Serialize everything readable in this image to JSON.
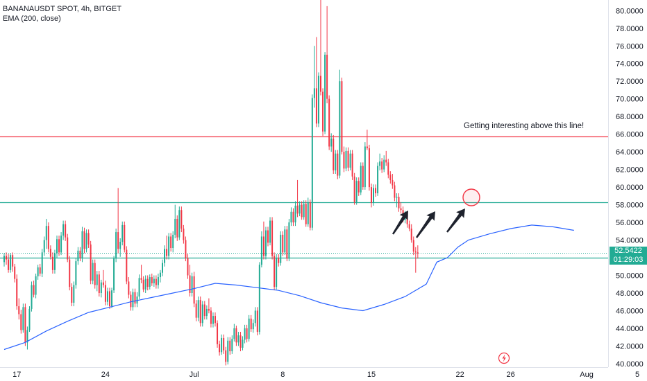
{
  "legend": {
    "symbol_line": "BANANAUSDT SPOT, 4h, BITGET",
    "indicator_line": "EMA (200, close)"
  },
  "price_badge": {
    "price": "52.5422",
    "countdown": "01:29:03"
  },
  "annotation": {
    "text": "Getting interesting above this line!"
  },
  "colors": {
    "up": "#22ab94",
    "down": "#f23645",
    "ema": "#2962ff",
    "resistance_line": "#f23645",
    "support_line": "#22ab94",
    "arrow": "#1e222d",
    "circle": "#f23645"
  },
  "chart_data": {
    "type": "candlestick",
    "title": "BANANAUSDT SPOT, 4h, BITGET",
    "ylim": [
      39.6,
      81.2
    ],
    "y_ticks": [
      "80.0000",
      "78.0000",
      "76.0000",
      "74.0000",
      "72.0000",
      "70.0000",
      "68.0000",
      "66.0000",
      "64.0000",
      "62.0000",
      "60.0000",
      "58.0000",
      "56.0000",
      "54.0000",
      "52.0000",
      "50.0000",
      "48.0000",
      "46.0000",
      "44.0000",
      "42.0000",
      "40.0000"
    ],
    "x_ticks": [
      {
        "label": "17",
        "index": 6
      },
      {
        "label": "24",
        "index": 48
      },
      {
        "label": "Jul",
        "index": 90
      },
      {
        "label": "8",
        "index": 132
      },
      {
        "label": "15",
        "index": 174
      },
      {
        "label": "22",
        "index": 216
      },
      {
        "label": "26",
        "index": 240
      },
      {
        "label": "Aug",
        "index": 276
      },
      {
        "label": "5",
        "index": 300
      }
    ],
    "horizontal_lines": [
      {
        "name": "resistance",
        "value": 65.75
      },
      {
        "name": "support-upper",
        "value": 58.3
      },
      {
        "name": "support-lower",
        "value": 52.0
      }
    ],
    "last_price": 52.5422,
    "ema": [
      [
        0,
        41.6
      ],
      [
        10,
        42.4
      ],
      [
        20,
        43.7
      ],
      [
        30,
        44.8
      ],
      [
        40,
        45.8
      ],
      [
        50,
        46.4
      ],
      [
        60,
        47.0
      ],
      [
        70,
        47.5
      ],
      [
        80,
        48.0
      ],
      [
        90,
        48.5
      ],
      [
        100,
        49.1
      ],
      [
        110,
        48.9
      ],
      [
        120,
        48.6
      ],
      [
        130,
        48.3
      ],
      [
        140,
        47.7
      ],
      [
        150,
        46.9
      ],
      [
        160,
        46.3
      ],
      [
        170,
        46.0
      ],
      [
        180,
        46.7
      ],
      [
        190,
        47.6
      ],
      [
        200,
        49.0
      ],
      [
        205,
        51.5
      ],
      [
        210,
        52.0
      ],
      [
        215,
        53.2
      ],
      [
        220,
        54.0
      ],
      [
        230,
        54.7
      ],
      [
        240,
        55.3
      ],
      [
        250,
        55.7
      ],
      [
        260,
        55.5
      ],
      [
        270,
        55.1
      ]
    ],
    "candles_ohlc": [
      [
        51.5,
        52.5,
        51.0,
        52.2
      ],
      [
        52.2,
        52.6,
        51.2,
        51.8
      ],
      [
        51.8,
        52.4,
        50.3,
        50.6
      ],
      [
        50.6,
        52.5,
        50.3,
        52.3
      ],
      [
        52.3,
        52.6,
        50.4,
        51.0
      ],
      [
        51.0,
        51.3,
        49.2,
        49.6
      ],
      [
        49.6,
        50.1,
        46.1,
        46.5
      ],
      [
        46.5,
        47.4,
        45.0,
        45.6
      ],
      [
        45.6,
        46.1,
        43.4,
        43.8
      ],
      [
        43.8,
        46.8,
        43.5,
        46.4
      ],
      [
        46.4,
        46.8,
        42.0,
        42.4
      ],
      [
        42.4,
        44.2,
        41.6,
        43.8
      ],
      [
        43.8,
        46.5,
        43.6,
        46.2
      ],
      [
        46.2,
        49.3,
        45.9,
        48.9
      ],
      [
        48.9,
        49.4,
        47.5,
        47.8
      ],
      [
        47.8,
        50.2,
        47.4,
        49.9
      ],
      [
        49.9,
        51.2,
        49.5,
        50.9
      ],
      [
        50.9,
        51.3,
        49.9,
        50.2
      ],
      [
        50.2,
        53.0,
        49.8,
        52.6
      ],
      [
        52.6,
        54.4,
        52.2,
        54.0
      ],
      [
        54.0,
        56.4,
        53.0,
        55.6
      ],
      [
        55.6,
        56.0,
        52.6,
        53.0
      ],
      [
        53.0,
        53.4,
        51.8,
        52.1
      ],
      [
        52.1,
        52.6,
        50.2,
        50.6
      ],
      [
        50.6,
        52.9,
        50.2,
        52.5
      ],
      [
        52.5,
        54.5,
        52.0,
        54.1
      ],
      [
        54.1,
        54.5,
        52.2,
        52.6
      ],
      [
        52.6,
        54.9,
        52.3,
        54.5
      ],
      [
        54.5,
        56.2,
        54.0,
        55.8
      ],
      [
        55.8,
        56.2,
        53.9,
        54.3
      ],
      [
        54.3,
        54.7,
        51.5,
        51.8
      ],
      [
        51.8,
        52.2,
        48.3,
        48.7
      ],
      [
        48.7,
        49.1,
        46.5,
        46.9
      ],
      [
        46.9,
        49.3,
        46.5,
        48.9
      ],
      [
        48.9,
        52.0,
        48.5,
        51.6
      ],
      [
        51.6,
        53.2,
        51.2,
        52.8
      ],
      [
        52.8,
        53.2,
        51.6,
        52.0
      ],
      [
        52.0,
        55.5,
        51.5,
        55.0
      ],
      [
        55.0,
        55.4,
        52.5,
        53.0
      ],
      [
        53.0,
        55.2,
        52.6,
        54.8
      ],
      [
        54.8,
        55.2,
        53.1,
        53.5
      ],
      [
        53.5,
        53.9,
        49.0,
        49.4
      ],
      [
        49.4,
        51.8,
        49.0,
        51.4
      ],
      [
        51.4,
        51.8,
        48.5,
        48.9
      ],
      [
        48.9,
        50.5,
        48.2,
        50.1
      ],
      [
        50.1,
        50.5,
        47.6,
        48.0
      ],
      [
        48.0,
        49.5,
        47.5,
        49.2
      ],
      [
        49.2,
        50.6,
        48.6,
        48.9
      ],
      [
        48.9,
        49.4,
        46.6,
        47.0
      ],
      [
        47.0,
        48.6,
        46.6,
        48.2
      ],
      [
        48.2,
        48.6,
        46.2,
        46.5
      ],
      [
        46.5,
        48.6,
        46.3,
        48.3
      ],
      [
        48.3,
        52.2,
        48.0,
        51.9
      ],
      [
        51.9,
        55.3,
        51.5,
        54.9
      ],
      [
        54.9,
        59.9,
        52.5,
        53.0
      ],
      [
        53.0,
        54.2,
        52.1,
        53.8
      ],
      [
        53.8,
        56.1,
        53.4,
        55.7
      ],
      [
        55.7,
        56.1,
        52.6,
        52.9
      ],
      [
        52.9,
        53.3,
        49.0,
        49.3
      ],
      [
        49.3,
        49.8,
        47.4,
        47.8
      ],
      [
        47.8,
        48.2,
        46.0,
        46.4
      ],
      [
        46.4,
        48.5,
        46.0,
        48.1
      ],
      [
        48.1,
        48.5,
        46.4,
        46.8
      ],
      [
        46.8,
        48.1,
        46.4,
        47.6
      ],
      [
        47.6,
        50.1,
        47.3,
        49.7
      ],
      [
        49.7,
        51.2,
        49.1,
        49.5
      ],
      [
        49.5,
        49.9,
        48.1,
        48.4
      ],
      [
        48.4,
        50.0,
        48.0,
        49.6
      ],
      [
        49.6,
        50.0,
        48.3,
        48.7
      ],
      [
        48.7,
        50.1,
        48.4,
        49.8
      ],
      [
        49.8,
        50.2,
        48.8,
        49.1
      ],
      [
        49.1,
        50.0,
        48.7,
        49.6
      ],
      [
        49.6,
        50.0,
        48.5,
        48.9
      ],
      [
        48.9,
        50.2,
        48.5,
        49.8
      ],
      [
        49.8,
        50.6,
        49.2,
        50.3
      ],
      [
        50.3,
        51.8,
        49.9,
        51.4
      ],
      [
        51.4,
        53.4,
        51.0,
        53.0
      ],
      [
        53.0,
        54.5,
        51.8,
        52.2
      ],
      [
        52.2,
        54.8,
        51.8,
        54.4
      ],
      [
        54.4,
        54.8,
        52.7,
        53.1
      ],
      [
        53.1,
        55.0,
        52.6,
        54.6
      ],
      [
        54.6,
        58.0,
        54.2,
        56.4
      ],
      [
        56.4,
        56.8,
        53.9,
        54.3
      ],
      [
        54.3,
        57.8,
        54.0,
        57.4
      ],
      [
        57.4,
        57.8,
        54.9,
        55.3
      ],
      [
        55.3,
        55.7,
        53.6,
        54.0
      ],
      [
        54.0,
        54.4,
        51.6,
        52.0
      ],
      [
        52.0,
        52.4,
        49.6,
        50.0
      ],
      [
        50.0,
        51.2,
        47.6,
        48.0
      ],
      [
        48.0,
        50.3,
        47.6,
        49.9
      ],
      [
        49.9,
        50.4,
        46.4,
        46.8
      ],
      [
        46.8,
        47.2,
        44.8,
        45.2
      ],
      [
        45.2,
        47.6,
        44.8,
        47.2
      ],
      [
        47.2,
        47.6,
        44.2,
        44.6
      ],
      [
        44.6,
        47.1,
        44.2,
        46.7
      ],
      [
        46.7,
        47.1,
        45.0,
        45.4
      ],
      [
        45.4,
        46.6,
        45.0,
        46.2
      ],
      [
        46.2,
        47.4,
        45.7,
        46.0
      ],
      [
        46.0,
        46.4,
        44.1,
        44.5
      ],
      [
        44.5,
        45.8,
        44.1,
        45.4
      ],
      [
        45.4,
        45.8,
        44.2,
        44.6
      ],
      [
        44.6,
        44.9,
        41.8,
        42.2
      ],
      [
        42.2,
        42.6,
        40.9,
        41.3
      ],
      [
        41.3,
        43.3,
        41.0,
        42.9
      ],
      [
        42.9,
        43.3,
        41.1,
        41.5
      ],
      [
        41.5,
        41.9,
        39.8,
        40.2
      ],
      [
        40.2,
        43.0,
        39.9,
        42.6
      ],
      [
        42.6,
        43.0,
        41.0,
        41.4
      ],
      [
        41.4,
        43.2,
        41.1,
        42.8
      ],
      [
        42.8,
        44.5,
        42.5,
        44.0
      ],
      [
        44.0,
        44.3,
        42.0,
        42.4
      ],
      [
        42.4,
        43.6,
        42.0,
        43.2
      ],
      [
        43.2,
        43.6,
        41.4,
        41.8
      ],
      [
        41.8,
        43.1,
        41.5,
        42.7
      ],
      [
        42.7,
        44.4,
        42.3,
        44.0
      ],
      [
        44.0,
        44.4,
        42.4,
        42.8
      ],
      [
        42.8,
        45.5,
        42.5,
        45.1
      ],
      [
        45.1,
        45.5,
        43.6,
        43.9
      ],
      [
        43.9,
        45.0,
        43.5,
        44.6
      ],
      [
        44.6,
        46.4,
        44.2,
        46.0
      ],
      [
        46.0,
        46.4,
        43.2,
        43.6
      ],
      [
        43.6,
        51.5,
        43.3,
        51.2
      ],
      [
        51.2,
        55.0,
        50.9,
        54.4
      ],
      [
        54.4,
        56.1,
        51.8,
        52.2
      ],
      [
        52.2,
        55.5,
        51.8,
        55.1
      ],
      [
        55.1,
        55.5,
        53.3,
        53.7
      ],
      [
        53.7,
        56.6,
        53.4,
        56.2
      ],
      [
        56.2,
        56.6,
        51.8,
        52.2
      ],
      [
        52.2,
        52.6,
        48.3,
        48.7
      ],
      [
        48.7,
        52.4,
        48.4,
        52.0
      ],
      [
        52.0,
        52.4,
        51.0,
        51.4
      ],
      [
        51.4,
        55.0,
        51.1,
        54.6
      ],
      [
        54.6,
        55.0,
        52.2,
        52.6
      ],
      [
        52.6,
        55.6,
        52.3,
        55.2
      ],
      [
        55.2,
        55.6,
        51.6,
        51.9
      ],
      [
        51.9,
        56.4,
        51.6,
        56.0
      ],
      [
        56.0,
        57.7,
        55.6,
        57.2
      ],
      [
        57.2,
        57.6,
        55.6,
        56.0
      ],
      [
        56.0,
        58.4,
        55.6,
        57.9
      ],
      [
        57.9,
        60.8,
        56.6,
        57.0
      ],
      [
        57.0,
        58.4,
        56.7,
        58.0
      ],
      [
        58.0,
        58.4,
        56.3,
        56.6
      ],
      [
        56.6,
        58.5,
        56.3,
        58.1
      ],
      [
        58.1,
        58.5,
        55.5,
        55.8
      ],
      [
        55.8,
        58.8,
        55.5,
        58.3
      ],
      [
        58.3,
        58.6,
        55.1,
        55.4
      ],
      [
        55.4,
        70.5,
        55.1,
        70.1
      ],
      [
        70.1,
        76.0,
        69.0,
        71.2
      ],
      [
        71.2,
        77.0,
        66.8,
        67.2
      ],
      [
        67.2,
        73.0,
        66.8,
        72.6
      ],
      [
        72.6,
        81.2,
        70.4,
        70.8
      ],
      [
        70.8,
        71.2,
        65.8,
        66.3
      ],
      [
        66.3,
        75.3,
        66.0,
        75.0
      ],
      [
        75.0,
        80.5,
        69.5,
        70.0
      ],
      [
        70.0,
        70.4,
        64.2,
        64.6
      ],
      [
        64.6,
        66.1,
        64.0,
        65.5
      ],
      [
        65.5,
        65.9,
        61.5,
        61.9
      ],
      [
        61.9,
        64.2,
        61.5,
        63.8
      ],
      [
        63.8,
        64.2,
        60.9,
        61.3
      ],
      [
        61.3,
        73.3,
        61.0,
        72.0
      ],
      [
        72.0,
        72.4,
        63.7,
        64.0
      ],
      [
        64.0,
        64.6,
        61.7,
        62.1
      ],
      [
        62.1,
        64.5,
        61.8,
        64.1
      ],
      [
        64.1,
        64.5,
        61.8,
        62.2
      ],
      [
        62.2,
        64.2,
        61.9,
        63.8
      ],
      [
        63.8,
        64.2,
        60.8,
        61.2
      ],
      [
        61.2,
        61.6,
        58.0,
        58.3
      ],
      [
        58.3,
        61.1,
        58.0,
        60.7
      ],
      [
        60.7,
        61.1,
        59.0,
        59.4
      ],
      [
        59.4,
        62.8,
        59.1,
        62.4
      ],
      [
        62.4,
        62.8,
        59.7,
        60.0
      ],
      [
        60.0,
        65.1,
        59.7,
        64.6
      ],
      [
        64.6,
        66.5,
        64.2,
        64.4
      ],
      [
        64.4,
        64.8,
        59.6,
        60.0
      ],
      [
        60.0,
        60.4,
        57.7,
        58.2
      ],
      [
        58.2,
        60.3,
        57.9,
        59.9
      ],
      [
        59.9,
        60.3,
        58.9,
        59.3
      ],
      [
        59.3,
        62.8,
        59.0,
        62.4
      ],
      [
        62.4,
        63.8,
        61.9,
        62.9
      ],
      [
        62.9,
        63.3,
        61.6,
        62.0
      ],
      [
        62.0,
        63.6,
        61.7,
        63.1
      ],
      [
        63.1,
        64.1,
        62.4,
        62.8
      ],
      [
        62.8,
        63.2,
        61.0,
        61.4
      ],
      [
        61.4,
        61.8,
        60.4,
        60.8
      ],
      [
        60.8,
        61.5,
        59.8,
        60.2
      ],
      [
        60.2,
        60.6,
        58.4,
        58.8
      ],
      [
        58.8,
        59.3,
        57.7,
        58.9
      ],
      [
        58.9,
        59.3,
        57.2,
        57.6
      ],
      [
        57.6,
        58.3,
        57.0,
        57.4
      ],
      [
        57.4,
        57.8,
        56.0,
        56.3
      ],
      [
        56.3,
        57.3,
        55.9,
        56.9
      ],
      [
        56.9,
        57.3,
        55.4,
        55.8
      ],
      [
        55.8,
        56.2,
        55.0,
        55.3
      ],
      [
        55.3,
        55.8,
        53.7,
        54.0
      ],
      [
        54.0,
        54.4,
        52.3,
        52.7
      ],
      [
        52.7,
        53.2,
        50.3,
        52.6
      ],
      [
        52.6,
        53.4,
        51.9,
        52.5
      ]
    ]
  }
}
